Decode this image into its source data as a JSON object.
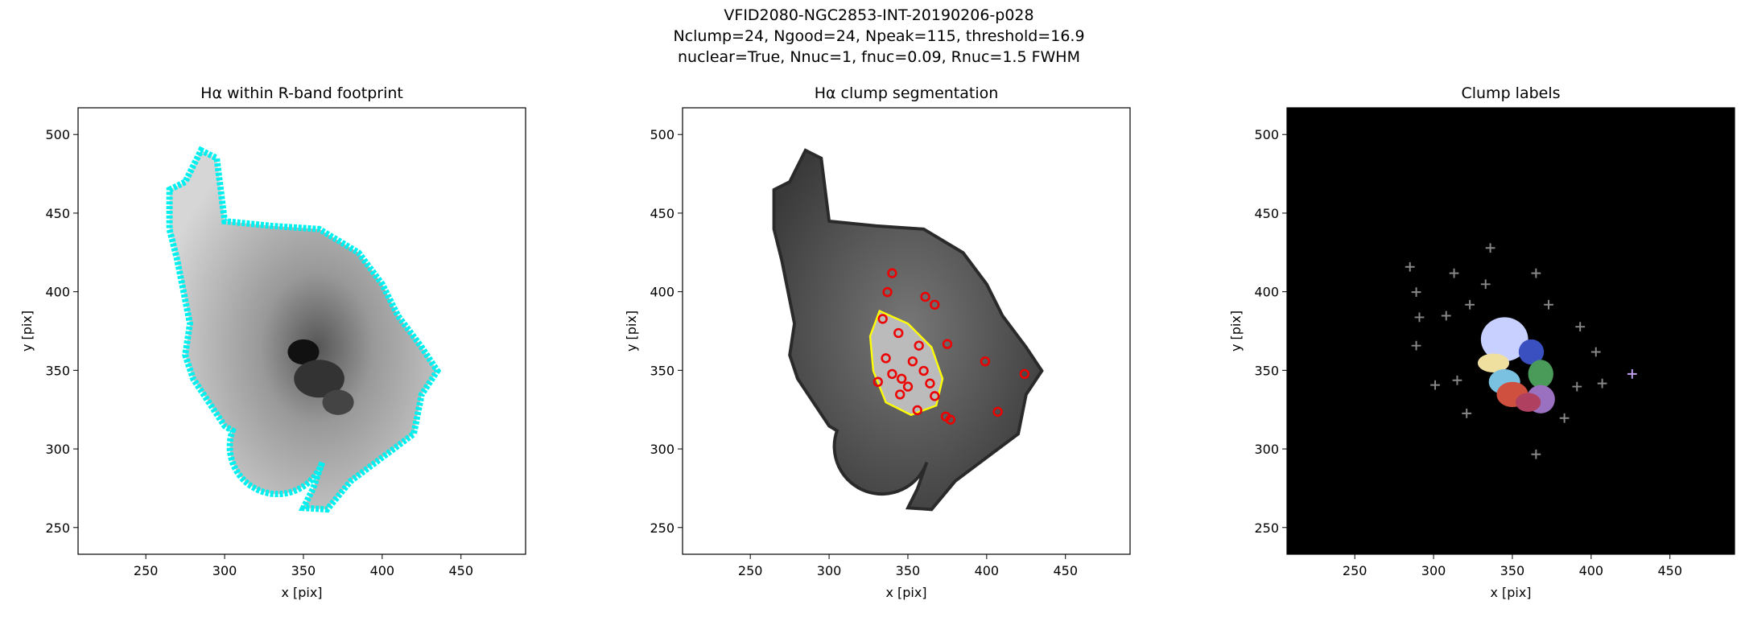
{
  "suptitle": [
    "VFID2080-NGC2853-INT-20190206-p028",
    "Nclump=24, Ngood=24, Npeak=115, threshold=16.9",
    "nuclear=True, Nnuc=1, fnuc=0.09, Rnuc=1.5 FWHM"
  ],
  "chart_data": [
    {
      "type": "image",
      "title": "Hα within R-band footprint",
      "xlabel": "x [pix]",
      "ylabel": "y [pix]",
      "xlim": [
        207,
        491
      ],
      "ylim": [
        233,
        517
      ],
      "xticks": [
        250,
        300,
        350,
        400,
        450
      ],
      "yticks": [
        250,
        300,
        350,
        400,
        450,
        500
      ]
    },
    {
      "type": "image",
      "title": "Hα clump segmentation",
      "xlabel": "x [pix]",
      "ylabel": "y [pix]",
      "xlim": [
        207,
        491
      ],
      "ylim": [
        233,
        517
      ],
      "xticks": [
        250,
        300,
        350,
        400,
        450
      ],
      "yticks": [
        250,
        300,
        350,
        400,
        450,
        500
      ]
    },
    {
      "type": "image",
      "title": "Clump labels",
      "xlabel": "x [pix]",
      "ylabel": "y [pix]",
      "xlim": [
        207,
        491
      ],
      "ylim": [
        233,
        517
      ],
      "xticks": [
        250,
        300,
        350,
        400,
        450
      ],
      "yticks": [
        250,
        300,
        350,
        400,
        450,
        500
      ]
    }
  ]
}
